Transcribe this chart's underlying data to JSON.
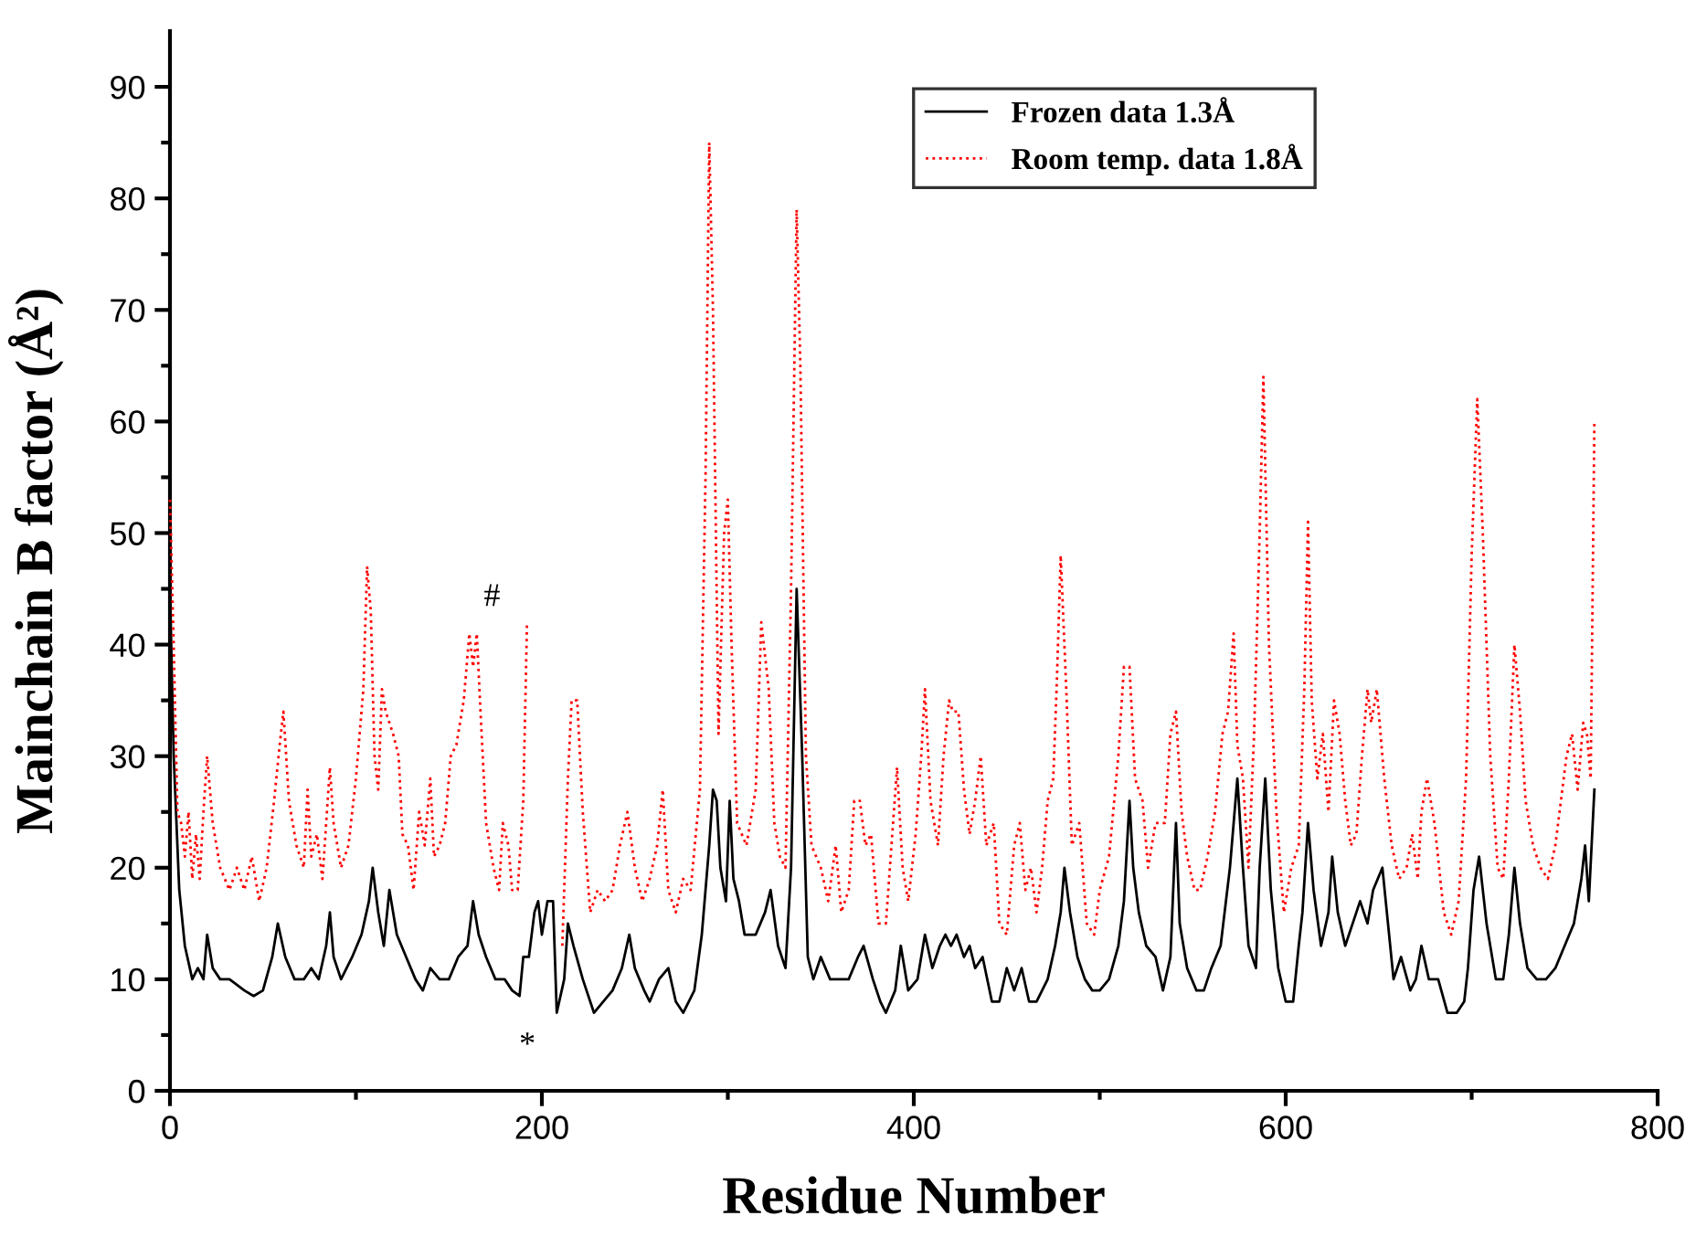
{
  "chart_data": {
    "type": "line",
    "xlabel": "Residue Number",
    "ylabel": "Mainchain B factor (Å²)",
    "xlim": [
      0,
      800
    ],
    "ylim": [
      0,
      95
    ],
    "xticks": [
      0,
      {
        "value": 100,
        "label": null
      },
      200,
      {
        "value": 300,
        "label": null
      },
      400,
      {
        "value": 500,
        "label": null
      },
      600,
      {
        "value": 700,
        "label": null
      },
      800
    ],
    "yticks": [
      0,
      {
        "value": 5,
        "label": null
      },
      10,
      {
        "value": 15,
        "label": null
      },
      20,
      {
        "value": 25,
        "label": null
      },
      30,
      {
        "value": 35,
        "label": null
      },
      40,
      {
        "value": 45,
        "label": null
      },
      50,
      {
        "value": 55,
        "label": null
      },
      60,
      {
        "value": 65,
        "label": null
      },
      70,
      {
        "value": 75,
        "label": null
      },
      80,
      {
        "value": 85,
        "label": null
      },
      90
    ],
    "grid": false,
    "legend": "top right",
    "marker": "none",
    "annotations": [
      {
        "text": "#",
        "x": 165,
        "y": 41
      },
      {
        "text": "*",
        "x": 184,
        "y": 9
      }
    ],
    "series": [
      {
        "name": "Frozen data 1.3Å",
        "color": "#000000",
        "line_style": "solid",
        "x": [
          0,
          2,
          5,
          8,
          12,
          15,
          18,
          20,
          23,
          27,
          32,
          40,
          45,
          50,
          55,
          58,
          62,
          67,
          72,
          76,
          80,
          84,
          86,
          88,
          92,
          98,
          103,
          107,
          109,
          112,
          115,
          118,
          122,
          127,
          132,
          136,
          140,
          145,
          150,
          155,
          160,
          163,
          166,
          170,
          175,
          180,
          184,
          188,
          190,
          193,
          196,
          198,
          200,
          203,
          206,
          208,
          212,
          214,
          217,
          222,
          228,
          233,
          238,
          243,
          247,
          250,
          255,
          258,
          263,
          268,
          272,
          276,
          282,
          286,
          290,
          292,
          294,
          296,
          299,
          301,
          303,
          306,
          309,
          315,
          320,
          323,
          327,
          331,
          334,
          337,
          340,
          343,
          346,
          350,
          355,
          360,
          365,
          370,
          373,
          378,
          382,
          385,
          390,
          393,
          397,
          402,
          406,
          410,
          414,
          417,
          420,
          423,
          427,
          430,
          433,
          437,
          442,
          446,
          450,
          454,
          458,
          462,
          466,
          472,
          476,
          479,
          481,
          484,
          488,
          492,
          496,
          500,
          505,
          510,
          513,
          516,
          518,
          521,
          525,
          530,
          534,
          538,
          541,
          543,
          547,
          552,
          556,
          560,
          565,
          570,
          574,
          577,
          580,
          584,
          586,
          589,
          592,
          596,
          600,
          604,
          607,
          609,
          612,
          615,
          619,
          623,
          625,
          628,
          632,
          636,
          640,
          644,
          647,
          652,
          655,
          658,
          662,
          667,
          670,
          673,
          677,
          682,
          687,
          692,
          696,
          698,
          701,
          704,
          708,
          713,
          717,
          720,
          723,
          726,
          730,
          735,
          740,
          745,
          750,
          755,
          759,
          761,
          763,
          766
        ],
        "values": [
          45,
          30,
          18,
          13,
          10,
          11,
          10,
          14,
          11,
          10,
          10,
          9,
          8.5,
          9,
          12,
          15,
          12,
          10,
          10,
          11,
          10,
          13,
          16,
          12,
          10,
          12,
          14,
          17,
          20,
          16,
          13,
          18,
          14,
          12,
          10,
          9,
          11,
          10,
          10,
          12,
          13,
          17,
          14,
          12,
          10,
          10,
          9,
          8.5,
          12,
          12,
          16,
          17,
          14,
          17,
          17,
          7,
          10,
          15,
          13,
          10,
          7,
          8,
          9,
          11,
          14,
          11,
          9,
          8,
          10,
          11,
          8,
          7,
          9,
          14,
          22,
          27,
          26,
          20,
          17,
          26,
          19,
          17,
          14,
          14,
          16,
          18,
          13,
          11,
          20,
          45,
          30,
          12,
          10,
          12,
          10,
          10,
          10,
          12,
          13,
          10,
          8,
          7,
          9,
          13,
          9,
          10,
          14,
          11,
          13,
          14,
          13,
          14,
          12,
          13,
          11,
          12,
          8,
          8,
          11,
          9,
          11,
          8,
          8,
          10,
          13,
          16,
          20,
          16,
          12,
          10,
          9,
          9,
          10,
          13,
          17,
          26,
          20,
          16,
          13,
          12,
          9,
          12,
          24,
          15,
          11,
          9,
          9,
          11,
          13,
          20,
          28,
          20,
          13,
          11,
          20,
          28,
          18,
          11,
          8,
          8,
          13,
          16,
          24,
          18,
          13,
          16,
          21,
          16,
          13,
          15,
          17,
          15,
          18,
          20,
          15,
          10,
          12,
          9,
          10,
          13,
          10,
          10,
          7,
          7,
          8,
          11,
          18,
          21,
          15,
          10,
          10,
          14,
          20,
          15,
          11,
          10,
          10,
          11,
          13,
          15,
          19,
          22,
          17,
          27
        ]
      },
      {
        "name": "Room temp. data 1.8Å",
        "color": "#ff0000",
        "line_style": "dotted",
        "x": [
          0,
          2,
          4,
          6,
          8,
          10,
          12,
          14,
          16,
          18,
          20,
          23,
          27,
          32,
          36,
          40,
          44,
          48,
          52,
          56,
          59,
          61,
          64,
          68,
          72,
          74,
          76,
          79,
          82,
          86,
          88,
          92,
          96,
          100,
          104,
          106,
          108,
          110,
          112,
          114,
          116,
          120,
          123,
          125,
          128,
          131,
          134,
          137,
          140,
          142,
          145,
          148,
          151,
          154,
          158,
          161,
          163,
          165,
          167,
          170,
          174,
          177,
          179,
          182,
          184,
          187,
          190,
          192,
          200,
          211,
          214,
          216,
          219,
          222,
          226,
          230,
          234,
          238,
          242,
          246,
          250,
          254,
          258,
          262,
          265,
          268,
          272,
          276,
          280,
          285,
          288,
          290,
          292,
          295,
          298,
          300,
          302,
          305,
          310,
          315,
          318,
          322,
          325,
          328,
          331,
          334,
          337,
          339,
          342,
          345,
          350,
          354,
          358,
          361,
          365,
          368,
          371,
          374,
          377,
          381,
          385,
          388,
          391,
          394,
          397,
          401,
          404,
          406,
          409,
          413,
          416,
          419,
          421,
          424,
          427,
          430,
          433,
          436,
          439,
          443,
          446,
          450,
          454,
          457,
          460,
          463,
          466,
          469,
          472,
          475,
          477,
          479,
          482,
          485,
          489,
          493,
          497,
          500,
          505,
          510,
          513,
          516,
          519,
          523,
          526,
          530,
          535,
          538,
          541,
          544,
          547,
          551,
          554,
          558,
          562,
          566,
          569,
          572,
          574,
          577,
          580,
          583,
          586,
          588,
          591,
          595,
          599,
          603,
          607,
          610,
          612,
          614,
          617,
          620,
          623,
          626,
          629,
          632,
          635,
          638,
          641,
          644,
          646,
          649,
          653,
          657,
          661,
          665,
          668,
          671,
          673,
          676,
          680,
          685,
          689,
          693,
          697,
          700,
          703,
          706,
          710,
          714,
          717,
          720,
          723,
          726,
          729,
          733,
          737,
          741,
          745,
          748,
          751,
          754,
          757,
          760,
          762,
          764,
          766
        ],
        "values": [
          53,
          40,
          25,
          24,
          21,
          25,
          19,
          23,
          19,
          25,
          30,
          24,
          20,
          18,
          20,
          18,
          21,
          17,
          20,
          26,
          31,
          34,
          26,
          22,
          20,
          27,
          21,
          23,
          19,
          29,
          24,
          20,
          22,
          28,
          36,
          47,
          43,
          30,
          27,
          36,
          34,
          32,
          30,
          23,
          22,
          18,
          25,
          22,
          28,
          21,
          22,
          24,
          30,
          31,
          35,
          41,
          38,
          41,
          34,
          24,
          20,
          18,
          24,
          22,
          18,
          18,
          26,
          42,
          null,
          13,
          28,
          35,
          35,
          25,
          16,
          18,
          17,
          18,
          22,
          25,
          20,
          17,
          19,
          22,
          27,
          18,
          16,
          19,
          18,
          27,
          55,
          85,
          70,
          32,
          50,
          53,
          40,
          24,
          22,
          27,
          42,
          36,
          24,
          21,
          20,
          45,
          79,
          65,
          30,
          22,
          20,
          17,
          22,
          16,
          18,
          26,
          26,
          22,
          23,
          15,
          15,
          22,
          29,
          20,
          17,
          23,
          30,
          36,
          26,
          22,
          30,
          35,
          34,
          34,
          27,
          23,
          26,
          30,
          22,
          24,
          15,
          14,
          22,
          24,
          18,
          20,
          16,
          20,
          26,
          28,
          37,
          48,
          36,
          22,
          24,
          15,
          14,
          18,
          21,
          30,
          38,
          38,
          28,
          26,
          20,
          24,
          24,
          32,
          34,
          25,
          21,
          18,
          18,
          21,
          25,
          32,
          34,
          41,
          31,
          28,
          20,
          32,
          50,
          64,
          40,
          25,
          16,
          20,
          22,
          36,
          51,
          35,
          28,
          32,
          25,
          35,
          32,
          26,
          22,
          23,
          30,
          36,
          33,
          36,
          28,
          22,
          19,
          20,
          23,
          19,
          25,
          28,
          24,
          16,
          14,
          17,
          28,
          48,
          62,
          50,
          30,
          20,
          19,
          28,
          40,
          34,
          26,
          22,
          20,
          19,
          22,
          26,
          30,
          32,
          27,
          33,
          32,
          28,
          60
        ]
      }
    ]
  }
}
